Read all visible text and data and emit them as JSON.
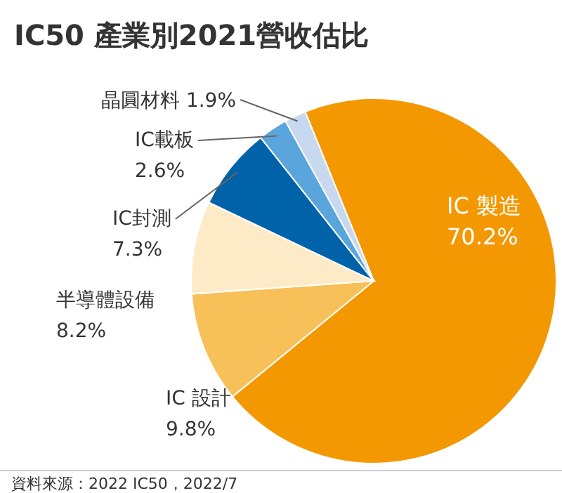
{
  "chart_data": {
    "type": "pie",
    "title": "IC50 產業別2021營收估比",
    "categories": [
      "IC 製造",
      "IC 設計",
      "半導體設備",
      "IC封測",
      "IC載板",
      "晶圓材料"
    ],
    "values": [
      70.2,
      9.8,
      8.2,
      7.3,
      2.6,
      1.9
    ],
    "colors": [
      "#f39800",
      "#f8c058",
      "#fdebc8",
      "#0062a8",
      "#5aa6dc",
      "#c8d8ee"
    ],
    "value_labels": [
      "70.2%",
      "9.8%",
      "8.2%",
      "7.3%",
      "2.6%",
      "1.9%"
    ],
    "annotations": [
      "資料來源：2022 IC50，2022/7"
    ]
  }
}
